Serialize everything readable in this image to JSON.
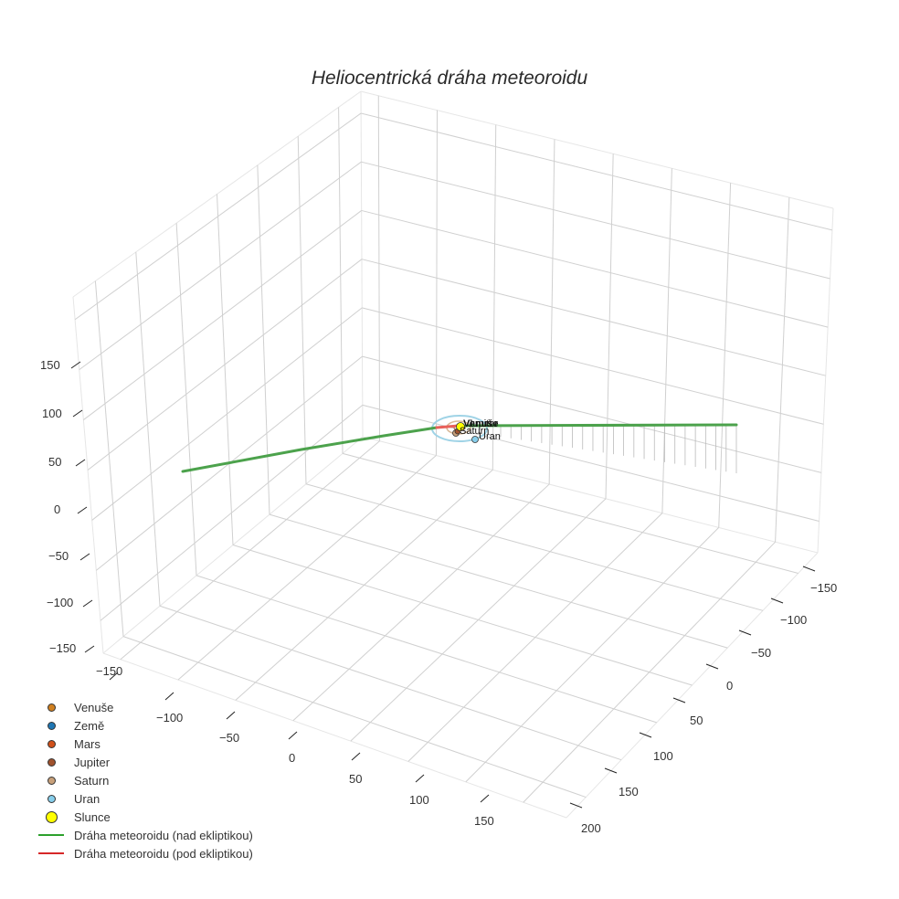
{
  "chart_data": {
    "type": "line3d",
    "title": "Heliocentrická dráha meteoroidu",
    "axes": {
      "x": {
        "label": "",
        "ticks": [
          -150,
          -100,
          -50,
          0,
          50,
          100,
          150
        ],
        "range": [
          -170,
          170
        ]
      },
      "y": {
        "label": "",
        "ticks": [
          -150,
          -100,
          -50,
          0,
          50,
          100,
          150,
          200
        ],
        "range": [
          -170,
          210
        ]
      },
      "z": {
        "label": "",
        "ticks": [
          -150,
          -100,
          -50,
          0,
          50,
          100,
          150
        ],
        "range": [
          -170,
          170
        ]
      }
    },
    "grid": true,
    "legend_position": "lower-left",
    "series": [
      {
        "name": "Venuše",
        "type": "point",
        "color": "#d08020",
        "x": 0.7,
        "y": 0.2,
        "z": 0
      },
      {
        "name": "Země",
        "type": "point",
        "color": "#1f77b4",
        "x": 1.0,
        "y": 0.0,
        "z": 0
      },
      {
        "name": "Mars",
        "type": "point",
        "color": "#d0501a",
        "x": 1.4,
        "y": -0.4,
        "z": 0
      },
      {
        "name": "Jupiter",
        "type": "point",
        "color": "#a0522d",
        "x": 5.0,
        "y": 1.0,
        "z": 0
      },
      {
        "name": "Saturn",
        "type": "point",
        "color": "#c8a07a",
        "x": -2.0,
        "y": 9.0,
        "z": 0
      },
      {
        "name": "Uran",
        "type": "point",
        "color": "#87ceeb",
        "x": 19.0,
        "y": 3.0,
        "z": 0
      },
      {
        "name": "Slunce",
        "type": "point",
        "color": "#ffff00",
        "x": 0,
        "y": 0,
        "z": 0
      },
      {
        "name": "Dráha meteoroidu (nad ekliptikou)",
        "type": "line",
        "color": "#2ca02c",
        "segments": [
          {
            "from": [
              -5,
              -160,
              40
            ],
            "to": [
              -1,
              -20,
              5
            ]
          },
          {
            "from": [
              2,
              10,
              0
            ],
            "to": [
              -150,
              185,
              10
            ]
          }
        ]
      },
      {
        "name": "Dráha meteoroidu (pod ekliptikou)",
        "type": "line",
        "color": "#d62728",
        "segments": [
          {
            "from": [
              -1,
              -20,
              5
            ],
            "to": [
              2,
              10,
              0
            ]
          }
        ]
      }
    ],
    "orbits": [
      {
        "planet": "Jupiter",
        "color": "#c8a07a",
        "radius_au": 5.2
      },
      {
        "planet": "Saturn",
        "color": "#c8a07a",
        "radius_au": 9.5
      },
      {
        "planet": "Uran",
        "color": "#87ceeb",
        "radius_au": 19.2
      }
    ]
  },
  "title": "Heliocentrická dráha meteoroidu",
  "z_ticks": [
    "150",
    "100",
    "50",
    "0",
    "−50",
    "−100",
    "−150"
  ],
  "x_ticks": [
    "−150",
    "−100",
    "−50",
    "0",
    "50",
    "100",
    "150"
  ],
  "y_ticks": [
    "−150",
    "−100",
    "−50",
    "0",
    "50",
    "100",
    "150",
    "200"
  ],
  "planet_labels": {
    "overlap": "Venuše",
    "jupiter": "Jupiter",
    "saturn": "Saturn",
    "uran": "Uran"
  },
  "legend": {
    "items": [
      {
        "label": "Venuše",
        "kind": "dot",
        "color": "#d08020"
      },
      {
        "label": "Země",
        "kind": "dot",
        "color": "#1f77b4"
      },
      {
        "label": "Mars",
        "kind": "dot",
        "color": "#d0501a"
      },
      {
        "label": "Jupiter",
        "kind": "dot",
        "color": "#a0522d"
      },
      {
        "label": "Saturn",
        "kind": "dot",
        "color": "#c8a07a"
      },
      {
        "label": "Uran",
        "kind": "dot",
        "color": "#87ceeb"
      },
      {
        "label": "Slunce",
        "kind": "bigdot",
        "color": "#ffff00"
      },
      {
        "label": "Dráha meteoroidu (nad ekliptikou)",
        "kind": "line",
        "color": "#2ca02c"
      },
      {
        "label": "Dráha meteoroidu (pod ekliptikou)",
        "kind": "line",
        "color": "#d62728"
      }
    ]
  }
}
